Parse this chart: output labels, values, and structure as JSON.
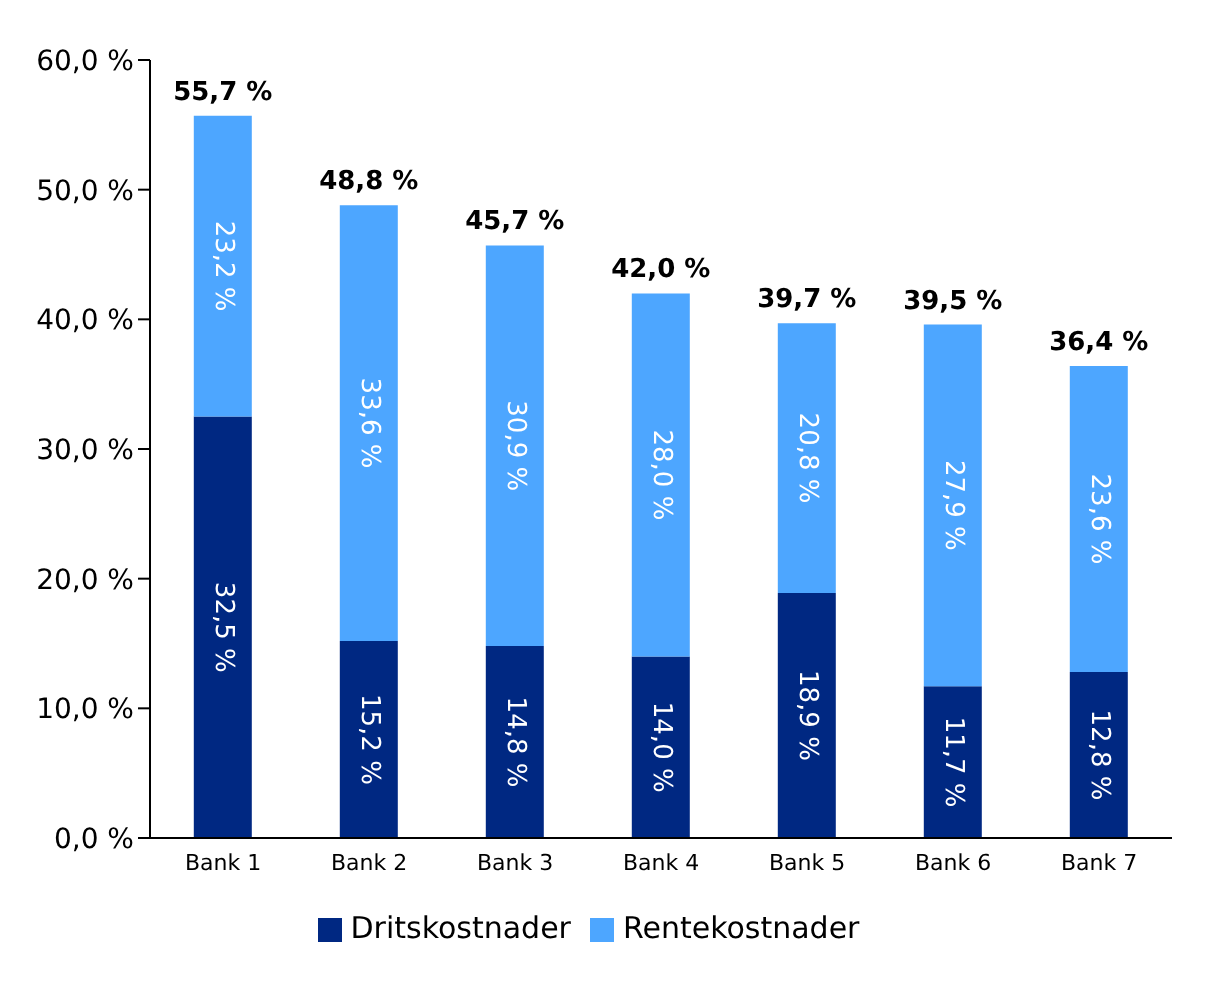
{
  "chart_data": {
    "type": "bar",
    "stacked": true,
    "categories": [
      "Bank 1",
      "Bank 2",
      "Bank 3",
      "Bank 4",
      "Bank 5",
      "Bank 6",
      "Bank 7"
    ],
    "series": [
      {
        "name": "Dritskostnader",
        "color": "#002882",
        "values": [
          32.5,
          15.2,
          14.8,
          14.0,
          18.9,
          11.7,
          12.8
        ],
        "value_labels": [
          "32,5 %",
          "15,2 %",
          "14,8 %",
          "14,0 %",
          "18,9 %",
          "11,7 %",
          "12,8 %"
        ]
      },
      {
        "name": "Rentekostnader",
        "color": "#4da6ff",
        "values": [
          23.2,
          33.6,
          30.9,
          28.0,
          20.8,
          27.9,
          23.6
        ],
        "value_labels": [
          "23,2 %",
          "33,6 %",
          "30,9 %",
          "28,0 %",
          "20,8 %",
          "27,9 %",
          "23,6 %"
        ]
      }
    ],
    "totals": [
      "55,7 %",
      "48,8 %",
      "45,7 %",
      "42,0 %",
      "39,7 %",
      "39,5 %",
      "36,4 %"
    ],
    "ylim": [
      0,
      60
    ],
    "yticks": [
      {
        "value": 0,
        "label": "0,0 %"
      },
      {
        "value": 10,
        "label": "10,0 %"
      },
      {
        "value": 20,
        "label": "20,0 %"
      },
      {
        "value": 30,
        "label": "30,0 %"
      },
      {
        "value": 40,
        "label": "40,0 %"
      },
      {
        "value": 50,
        "label": "50,0 %"
      },
      {
        "value": 60,
        "label": "60,0 %"
      }
    ],
    "grid": false,
    "legend": "bottom"
  }
}
